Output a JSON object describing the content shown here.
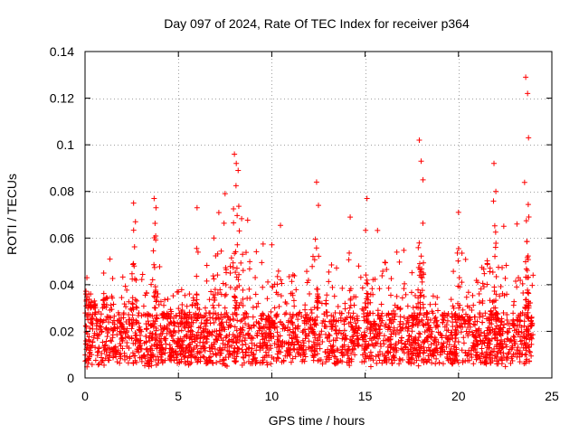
{
  "chart_data": {
    "type": "scatter",
    "title": "Day 097 of 2024, Rate Of TEC Index for receiver p364",
    "xlabel": "GPS time / hours",
    "ylabel": "ROTI / TECUs",
    "xlim": [
      0,
      25
    ],
    "ylim": [
      0,
      0.14
    ],
    "xticks": [
      0,
      5,
      10,
      15,
      20,
      25
    ],
    "xtick_labels": [
      "0",
      "5",
      "10",
      "15",
      "20",
      "25"
    ],
    "yticks": [
      0,
      0.02,
      0.04,
      0.06,
      0.08,
      0.1,
      0.12,
      0.14
    ],
    "ytick_labels": [
      "0",
      "0.02",
      "0.04",
      "0.06",
      "0.08",
      "0.1",
      "0.12",
      "0.14"
    ],
    "grid": true,
    "marker": "+",
    "marker_color": "#ff0000",
    "description_series": "dense scatter of ROTI values from 0 to 24 h, mostly 0.005-0.03 TECU/s with spikes",
    "series": [
      {
        "name": "ROTI",
        "x": [
          0.1,
          0.3,
          0.5,
          1.0,
          2.6,
          2.7,
          3.7,
          3.8,
          6.0,
          6.9,
          7.5,
          8.0,
          8.1,
          8.2,
          12.4,
          12.5,
          14.2,
          15.1,
          17.9,
          18.0,
          18.1,
          20.0,
          21.9,
          22.0,
          23.6,
          23.7,
          23.75
        ],
        "y": [
          0.043,
          0.036,
          0.033,
          0.045,
          0.075,
          0.067,
          0.077,
          0.073,
          0.073,
          0.06,
          0.079,
          0.096,
          0.092,
          0.089,
          0.084,
          0.074,
          0.069,
          0.077,
          0.102,
          0.093,
          0.085,
          0.071,
          0.092,
          0.08,
          0.129,
          0.122,
          0.103
        ]
      }
    ]
  }
}
